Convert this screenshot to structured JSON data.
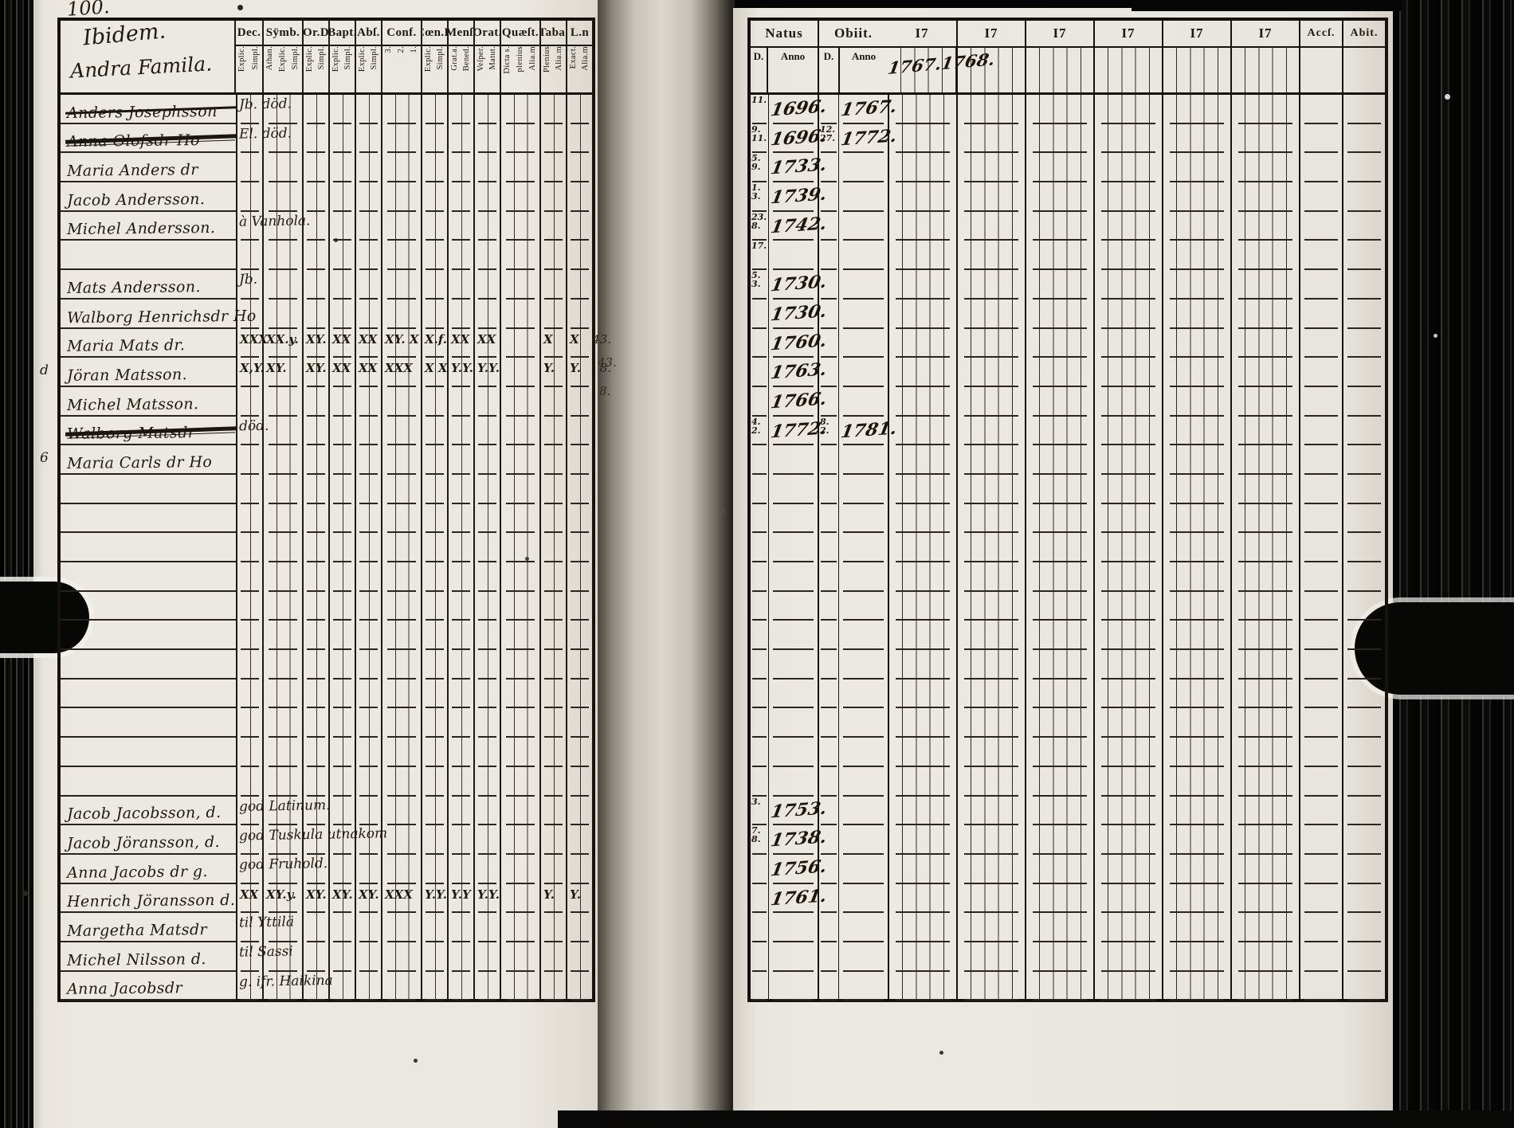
{
  "page_number": "100.",
  "colors": {
    "ink": "#1f1812",
    "paper": "#ebe8e1"
  },
  "left_page": {
    "title_line1": "Ibidem.",
    "title_line2": "Andra Famila.",
    "column_groups": [
      {
        "label": "Dec.",
        "subs": [
          "Explic.",
          "Simpl."
        ]
      },
      {
        "label": "Sÿmb.",
        "subs": [
          "Athan.",
          "Explic.",
          "Simpl."
        ]
      },
      {
        "label": "Or.D",
        "subs": [
          "Explic.",
          "Simpl."
        ]
      },
      {
        "label": "Bapt.",
        "subs": [
          "Explic.",
          "Simpl."
        ]
      },
      {
        "label": "Abſ.",
        "subs": [
          "Explic.",
          "Simpl."
        ]
      },
      {
        "label": "Conf.",
        "subs": [
          "3.",
          "2.",
          "1."
        ]
      },
      {
        "label": "Cœn.D",
        "subs": [
          "Explic.",
          "Simpl."
        ]
      },
      {
        "label": "Menſ.",
        "subs": [
          "Grat.a.",
          "Bened."
        ]
      },
      {
        "label": "Orat.",
        "subs": [
          "Veſper.",
          "Matut."
        ]
      },
      {
        "label": "Quæſt.",
        "subs": [
          "Dicta s.",
          "plenius",
          "Alia.m"
        ]
      },
      {
        "label": "Taba.",
        "subs": [
          "Plenius",
          "Alia.m"
        ]
      },
      {
        "label": "L.n",
        "subs": [
          "Exact.",
          "Alia.m"
        ]
      }
    ]
  },
  "right_page": {
    "natus_label": "Natus",
    "obiit_label": "Obiit.",
    "d_label": "D.",
    "anno_label": "Anno",
    "year_blocks": [
      {
        "label": "I7",
        "note": "1767.1768."
      },
      {
        "label": "I7",
        "note": ""
      },
      {
        "label": "I7",
        "note": ""
      },
      {
        "label": "I7",
        "note": ""
      },
      {
        "label": "I7",
        "note": ""
      },
      {
        "label": "I7",
        "note": ""
      }
    ],
    "accs_label": "Accſ.",
    "abit_label": "Abit."
  },
  "gutter_marks": [
    "43.",
    "8."
  ],
  "bottom_mark": "II",
  "rows": [
    {
      "name": "Anders Josephsson",
      "struck": true,
      "note": "Jb. död.",
      "natus_d": "11",
      "natus_anno": "1696.",
      "obiit_d": "",
      "obiit_anno": "1767."
    },
    {
      "name": "Anna Olofsdr Ho",
      "struck": true,
      "strike_heavy": true,
      "note": "El. död.",
      "natus_d": "9/11",
      "natus_anno": "1696.",
      "obiit_d": "12/27",
      "obiit_anno": "1772."
    },
    {
      "name": "Maria Anders dr",
      "natus_d": "5/9",
      "natus_anno": "1733."
    },
    {
      "name": "Jacob Andersson.",
      "natus_d": "1/3",
      "natus_anno": "1739."
    },
    {
      "name": "Michel Andersson.",
      "note": "à Vanhola.",
      "natus_d": "23/8",
      "natus_anno": "1742."
    },
    {
      "natus_d": "17"
    },
    {
      "name": "Mats Andersson.",
      "note": "Jb.",
      "natus_d": "5/3",
      "natus_anno": "1730."
    },
    {
      "name": "Walborg Henrichsdr Ho",
      "natus_anno": "1730."
    },
    {
      "name": "Maria Mats dr.",
      "marks": [
        "XXX",
        "XX.y.",
        "XY.",
        "XX",
        "XX",
        "XY. X",
        "X.f.",
        "XX",
        "XX",
        "",
        "X",
        "X"
      ],
      "natus_anno": "1760.",
      "margin_right": "43."
    },
    {
      "name": "Jöran Matsson.",
      "margin_left": "d",
      "margin_right": "8.",
      "marks": [
        "X,Y.",
        "XY.",
        "XY.",
        "XX",
        "XX",
        "XXX",
        "X X",
        "Y.Y.",
        "Y.Y.",
        "",
        "Y.",
        "Y."
      ],
      "natus_anno": "1763."
    },
    {
      "name": "Michel Matsson.",
      "natus_anno": "1766."
    },
    {
      "name": "Walborg Matsdr",
      "struck": true,
      "strike_heavy": true,
      "note": "död.",
      "natus_d": "4/2",
      "natus_anno": "1772.",
      "obiit_d": "8/2",
      "obiit_anno": "1781."
    },
    {
      "name": "Maria Carls dr Ho",
      "margin_left": "6"
    },
    {},
    {},
    {},
    {},
    {},
    {},
    {},
    {},
    {},
    {},
    {},
    {
      "name": "Jacob Jacobsson, d.",
      "note": "god Latinum.",
      "natus_d": "3",
      "natus_anno": "1753."
    },
    {
      "name": "Jacob Jöransson, d.",
      "note": "god Tuskula utnakom",
      "natus_d": "7/8",
      "natus_anno": "1738."
    },
    {
      "name": "Anna Jacobs dr g.",
      "note": "god Fruhold.",
      "natus_anno": "1756."
    },
    {
      "name": "Henrich Jöransson d.",
      "marks": [
        "XX",
        "XY.y.",
        "XY.",
        "XY.",
        "XY.",
        "XXX",
        "Y.Y.",
        "Y.Y",
        "Y.Y.",
        "",
        "Y.",
        "Y."
      ],
      "natus_anno": "1761."
    },
    {
      "name": "Margetha Matsdr",
      "note": "til Yttilä"
    },
    {
      "name": "Michel Nilsson d.",
      "note": "til Sassi"
    },
    {
      "name": "Anna Jacobsdr",
      "note": "g. ifr. Haikina"
    }
  ]
}
